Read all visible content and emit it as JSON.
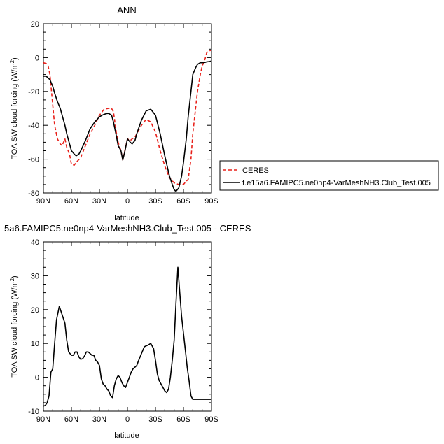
{
  "chart_data": [
    {
      "type": "line",
      "title": "ANN",
      "xlabel": "latitude",
      "ylabel": "TOA SW cloud forcing (W/m²)",
      "ylabel_main": "TOA SW cloud forcing (W/m",
      "ylabel_sup": "2",
      "ylabel_end": ")",
      "xlim": [
        -90,
        90
      ],
      "ylim": [
        -80,
        20
      ],
      "xticks": [
        -90,
        -60,
        -30,
        0,
        30,
        60,
        90
      ],
      "xtick_labels": [
        "90N",
        "60N",
        "30N",
        "0",
        "30S",
        "60S",
        "90S"
      ],
      "yticks": [
        -80,
        -60,
        -40,
        -20,
        0,
        20
      ],
      "ytick_labels": [
        "-80",
        "-60",
        "-40",
        "-20",
        "0",
        "20"
      ],
      "grid": false,
      "legend": "right",
      "series": [
        {
          "name": "CERES",
          "color": "#e8201a",
          "dash": "dashed",
          "x": [
            -90,
            -87,
            -85,
            -83,
            -80,
            -78,
            -75,
            -72,
            -70,
            -67,
            -65,
            -62,
            -60,
            -57,
            -55,
            -50,
            -45,
            -40,
            -35,
            -30,
            -25,
            -20,
            -17,
            -15,
            -12,
            -10,
            -7,
            -5,
            -2,
            0,
            3,
            5,
            8,
            10,
            15,
            20,
            25,
            30,
            35,
            40,
            45,
            50,
            55,
            60,
            63,
            65,
            68,
            70,
            73,
            75,
            78,
            80,
            83,
            85,
            88,
            90
          ],
          "y": [
            -3,
            -3.5,
            -5,
            -10,
            -28,
            -40,
            -48,
            -51,
            -52,
            -48,
            -53,
            -57,
            -63,
            -63.5,
            -62,
            -59,
            -52,
            -45,
            -40,
            -34,
            -30.5,
            -30,
            -30,
            -32,
            -44,
            -50,
            -55,
            -60.5,
            -53,
            -48,
            -49,
            -48,
            -47,
            -45,
            -40,
            -36.5,
            -38,
            -44,
            -55,
            -64,
            -71,
            -74,
            -75,
            -75,
            -73,
            -72,
            -60,
            -45,
            -30,
            -20,
            -10,
            -5,
            -1,
            3,
            4,
            4.5
          ]
        },
        {
          "name": "f.e15a6.FAMIPC5.ne0np4-VarMeshNH3.Club_Test.005",
          "color": "#000000",
          "dash": "solid",
          "x": [
            -90,
            -87,
            -85,
            -83,
            -80,
            -78,
            -75,
            -72,
            -70,
            -67,
            -65,
            -62,
            -60,
            -57,
            -55,
            -52,
            -50,
            -45,
            -40,
            -35,
            -30,
            -27,
            -25,
            -22,
            -20,
            -17,
            -15,
            -12,
            -10,
            -7,
            -5,
            -3,
            0,
            3,
            5,
            8,
            10,
            15,
            20,
            25,
            30,
            35,
            40,
            45,
            48,
            50,
            52,
            55,
            58,
            60,
            63,
            65,
            68,
            70,
            73,
            75,
            78,
            80,
            83,
            85,
            88,
            90
          ],
          "y": [
            -11,
            -11,
            -12,
            -13,
            -17,
            -21,
            -26,
            -30,
            -34,
            -40,
            -45,
            -51,
            -55,
            -57,
            -58,
            -57,
            -55,
            -49,
            -42,
            -38,
            -35,
            -34,
            -33.5,
            -33,
            -33,
            -34,
            -38,
            -46,
            -52,
            -55,
            -60.5,
            -56,
            -48,
            -50,
            -51,
            -49,
            -45,
            -37,
            -31.5,
            -30.5,
            -34,
            -45,
            -58,
            -70,
            -75,
            -78,
            -79,
            -77,
            -70,
            -62,
            -48,
            -35,
            -20,
            -10,
            -6,
            -4,
            -3,
            -3,
            -2.8,
            -2.5,
            -2.3,
            -2
          ]
        }
      ]
    },
    {
      "type": "line",
      "title": "5a6.FAMIPC5.ne0np4-VarMeshNH3.Club_Test.005 - CERES",
      "xlabel": "latitude",
      "ylabel": "TOA SW cloud forcing (W/m²)",
      "ylabel_main": "TOA SW cloud forcing (W/m",
      "ylabel_sup": "2",
      "ylabel_end": ")",
      "xlim": [
        -90,
        90
      ],
      "ylim": [
        -10,
        40
      ],
      "xticks": [
        -90,
        -60,
        -30,
        0,
        30,
        60,
        90
      ],
      "xtick_labels": [
        "90N",
        "60N",
        "30N",
        "0",
        "30S",
        "60S",
        "90S"
      ],
      "yticks": [
        -10,
        0,
        10,
        20,
        30,
        40
      ],
      "ytick_labels": [
        "-10",
        "0",
        "10",
        "20",
        "30",
        "40"
      ],
      "grid": false,
      "series": [
        {
          "color": "#000000",
          "dash": "solid",
          "x": [
            -90,
            -88,
            -86,
            -84,
            -82,
            -80,
            -78,
            -76,
            -73,
            -70,
            -67,
            -65,
            -63,
            -60,
            -58,
            -56,
            -54,
            -52,
            -50,
            -48,
            -46,
            -44,
            -42,
            -40,
            -38,
            -36,
            -34,
            -32,
            -30,
            -28,
            -26,
            -24,
            -22,
            -20,
            -18,
            -16,
            -14,
            -12,
            -10,
            -8,
            -6,
            -4,
            -2,
            0,
            2,
            4,
            6,
            8,
            10,
            12,
            15,
            18,
            20,
            22,
            25,
            28,
            30,
            32,
            34,
            36,
            38,
            40,
            42,
            44,
            46,
            48,
            50,
            52,
            54,
            56,
            58,
            60,
            62,
            64,
            66,
            68,
            70,
            72,
            74,
            76,
            78,
            80,
            82,
            84,
            86,
            88,
            90
          ],
          "y": [
            -8.5,
            -8.3,
            -7.5,
            -5.5,
            1.5,
            2.5,
            10,
            17,
            21,
            18.5,
            16,
            11,
            7.5,
            6.5,
            6.5,
            7.5,
            7.5,
            6,
            5.3,
            5.5,
            6.3,
            7.5,
            7.5,
            7,
            6.5,
            6.5,
            5,
            4.5,
            3.5,
            -0.5,
            -2,
            -2.5,
            -3.5,
            -4,
            -5.5,
            -6,
            -2.5,
            -0.5,
            0.5,
            0,
            -1.5,
            -2.5,
            -3,
            -1.5,
            0,
            1.5,
            2.5,
            3,
            3.5,
            5,
            7,
            9,
            9.3,
            9.5,
            10,
            8.5,
            5,
            1,
            -1,
            -2,
            -3,
            -4,
            -4.5,
            -3.5,
            0,
            5,
            11,
            22,
            32.5,
            25,
            18,
            13,
            8,
            3,
            -1,
            -5.5,
            -6.5,
            -6.5,
            -6.5,
            -6.5,
            -6.5,
            -6.5,
            -6.5,
            -6.5,
            -6.5,
            -6.5,
            -6.5
          ]
        }
      ]
    }
  ]
}
